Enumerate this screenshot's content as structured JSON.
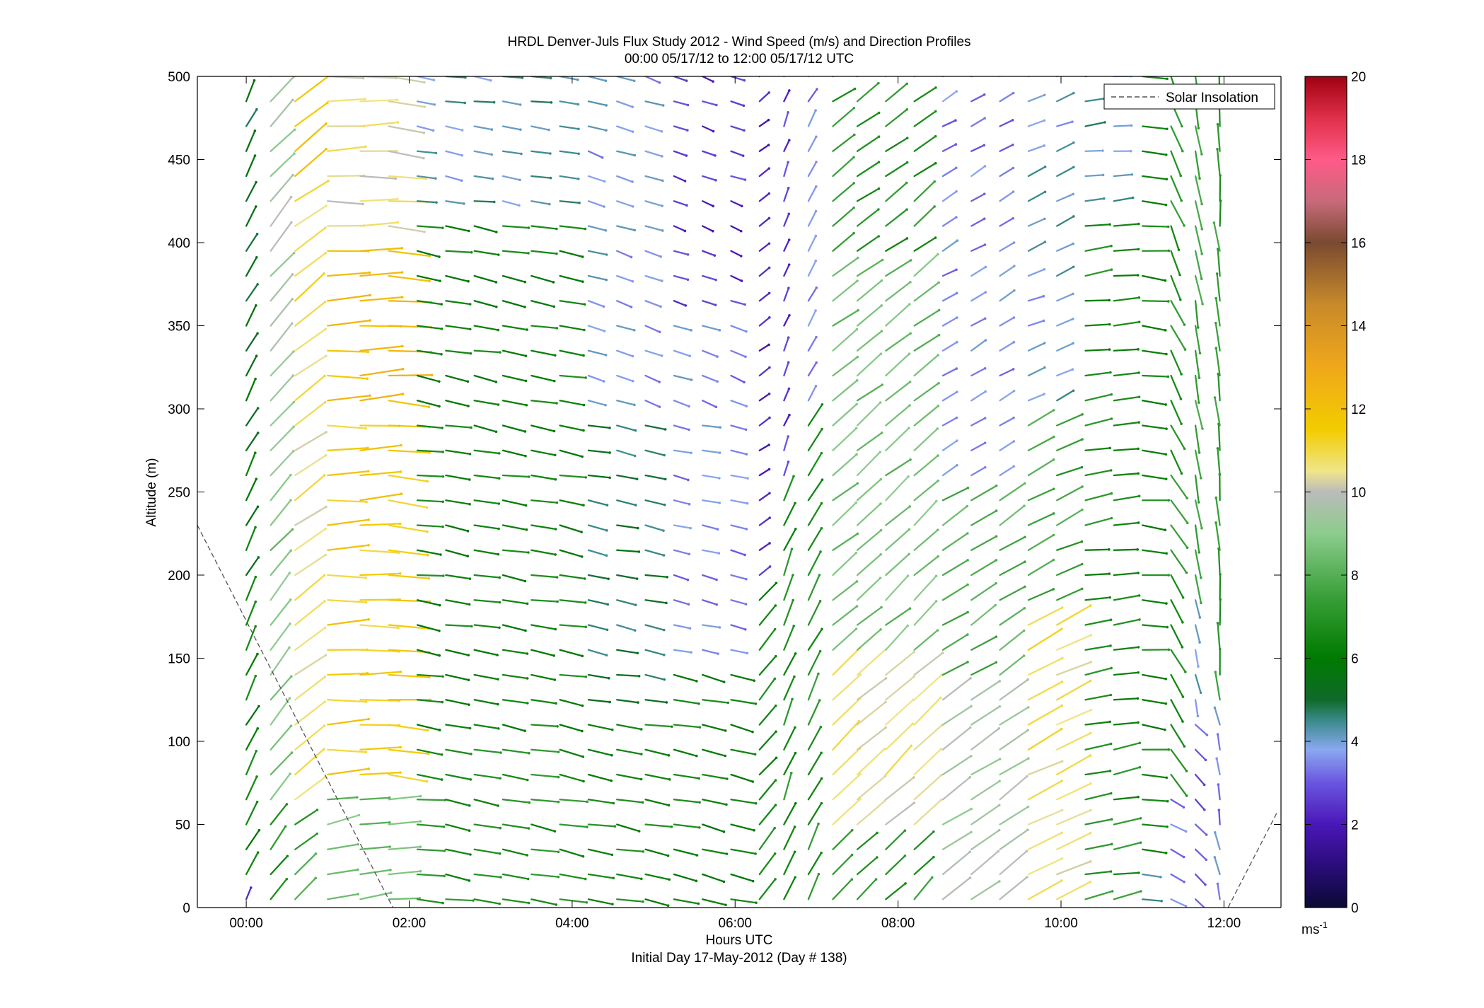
{
  "chart_data": {
    "type": "quiver",
    "title": "HRDL Denver-Juls Flux Study 2012 - Wind Speed (m/s) and Direction Profiles",
    "subtitle": "00:00 05/17/12 to 12:00 05/17/12  UTC",
    "xlabel": "Hours UTC",
    "xlabel2": "Initial Day 17-May-2012 (Day # 138)",
    "ylabel": "Altitude (m)",
    "xlim": [
      -0.6,
      12.7
    ],
    "ylim": [
      0,
      500
    ],
    "x_ticks": [
      0,
      2,
      4,
      6,
      8,
      10,
      12
    ],
    "x_tick_labels": [
      "00:00",
      "02:00",
      "04:00",
      "06:00",
      "08:00",
      "10:00",
      "12:00"
    ],
    "y_ticks": [
      0,
      50,
      100,
      150,
      200,
      250,
      300,
      350,
      400,
      450,
      500
    ],
    "y_tick_labels": [
      "0",
      "50",
      "100",
      "150",
      "200",
      "250",
      "300",
      "350",
      "400",
      "450",
      "500"
    ],
    "legend": {
      "placement": "top-right",
      "entries": [
        {
          "label": "Solar Insolation",
          "style": "dashed",
          "color": "#555555"
        }
      ]
    },
    "colorbar": {
      "range": [
        0,
        20
      ],
      "ticks": [
        0,
        2,
        4,
        6,
        8,
        10,
        12,
        14,
        16,
        18,
        20
      ],
      "tick_labels": [
        "0",
        "2",
        "4",
        "6",
        "8",
        "10",
        "12",
        "14",
        "16",
        "18",
        "20"
      ],
      "unit_label": "ms",
      "unit_exponent": "-1",
      "stops": [
        [
          0,
          "#0a0a33"
        ],
        [
          1,
          "#2a0c7a"
        ],
        [
          2,
          "#4a17b8"
        ],
        [
          3,
          "#6a55e0"
        ],
        [
          3.8,
          "#8aa8f0"
        ],
        [
          4.5,
          "#3a8a8a"
        ],
        [
          5,
          "#0f6a2a"
        ],
        [
          6,
          "#007a00"
        ],
        [
          7.5,
          "#3aa03a"
        ],
        [
          9,
          "#8ccc8c"
        ],
        [
          10,
          "#bbbbbb"
        ],
        [
          10.5,
          "#f0e58a"
        ],
        [
          11.5,
          "#f2cc00"
        ],
        [
          13,
          "#f0a81a"
        ],
        [
          14.5,
          "#c88a2a"
        ],
        [
          16,
          "#7a4a30"
        ],
        [
          17,
          "#c86a7a"
        ],
        [
          18,
          "#ff5a88"
        ],
        [
          19,
          "#e0304a"
        ],
        [
          20,
          "#a00010"
        ]
      ]
    },
    "solar_insolation": {
      "segments": [
        [
          [
            -0.6,
            230
          ],
          [
            1.8,
            0
          ]
        ],
        [
          [
            12.05,
            0
          ],
          [
            12.65,
            57
          ]
        ]
      ]
    },
    "vector_field": {
      "times": [
        0,
        0.3,
        0.6,
        1.0,
        1.4,
        1.75,
        2.1,
        2.45,
        2.8,
        3.15,
        3.5,
        3.85,
        4.2,
        4.55,
        4.9,
        5.25,
        5.6,
        5.95,
        6.3,
        6.6,
        6.9,
        7.2,
        7.5,
        7.85,
        8.2,
        8.55,
        8.9,
        9.25,
        9.6,
        9.95,
        10.3,
        10.65,
        11.0,
        11.35,
        11.65,
        11.95
      ],
      "altitudes": [
        5,
        20,
        35,
        50,
        65,
        80,
        95,
        110,
        125,
        140,
        155,
        170,
        185,
        200,
        215,
        230,
        245,
        260,
        275,
        290,
        305,
        320,
        335,
        350,
        365,
        380,
        395,
        410,
        425,
        440,
        455,
        470,
        485,
        500
      ],
      "encoding": "generated by script: direction (deg toward, 0=east, ccw) and speed (m/s) per column and altitude"
    }
  }
}
